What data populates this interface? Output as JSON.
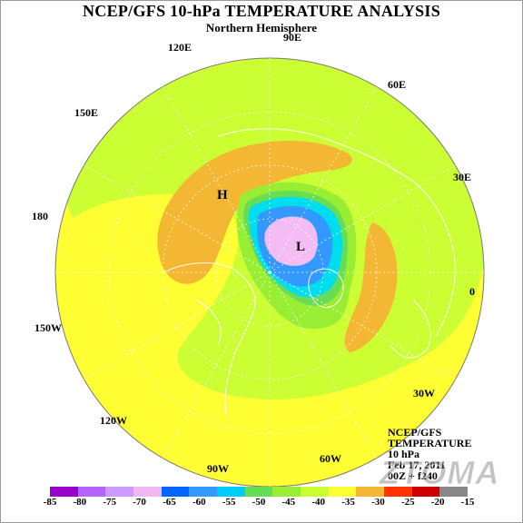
{
  "header": {
    "title": "NCEP/GFS 10-hPa TEMPERATURE ANALYSIS",
    "subtitle": "Northern Hemisphere"
  },
  "map": {
    "projection": "north polar stereographic",
    "longitude_labels": [
      "90E",
      "60E",
      "30E",
      "0",
      "30W",
      "60W",
      "90W",
      "120W",
      "150W",
      "180",
      "150E",
      "120E"
    ],
    "pressure_centers": {
      "high": "H",
      "low": "L"
    },
    "colors": {
      "yellow": "#ffff33",
      "yellow_green": "#ccff33",
      "orange": "#f4b733",
      "green": "#99ee33",
      "light_green": "#66dd55",
      "cyan": "#00ddee",
      "blue": "#3399ff",
      "pink": "#f4bcf4"
    }
  },
  "info": {
    "line1": "NCEP/GFS",
    "line2": "TEMPERATURE",
    "line3": "10 hPa",
    "line4": "Feb 17, 2011",
    "line5": "00Z + f240"
  },
  "watermark": "ZTOMA",
  "colorbar": {
    "labels": [
      "-85",
      "-80",
      "-75",
      "-70",
      "-65",
      "-60",
      "-55",
      "-50",
      "-45",
      "-40",
      "-35",
      "-30",
      "-25",
      "-20",
      "-15"
    ],
    "colors": [
      "#9900cc",
      "#b366ff",
      "#cc99ff",
      "#f0b8f0",
      "#0066ff",
      "#3399ff",
      "#00ccff",
      "#66dd55",
      "#99ee33",
      "#ccff33",
      "#ffff33",
      "#f4b733",
      "#ff3300",
      "#cc0000",
      "#888888"
    ]
  }
}
